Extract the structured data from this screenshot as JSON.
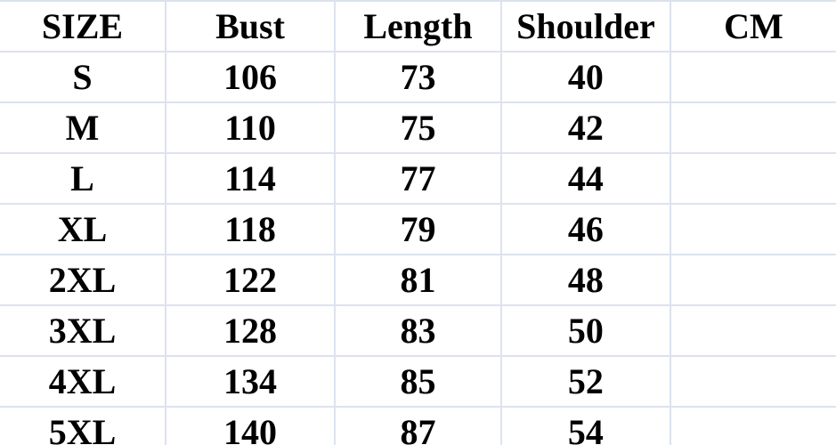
{
  "chart_data": {
    "type": "table",
    "title": "Garment size chart",
    "unit": "CM",
    "columns": [
      "SIZE",
      "Bust",
      "Length",
      "Shoulder",
      "CM"
    ],
    "rows": [
      [
        "S",
        "106",
        "73",
        "40",
        ""
      ],
      [
        "M",
        "110",
        "75",
        "42",
        ""
      ],
      [
        "L",
        "114",
        "77",
        "44",
        ""
      ],
      [
        "XL",
        "118",
        "79",
        "46",
        ""
      ],
      [
        "2XL",
        "122",
        "81",
        "48",
        ""
      ],
      [
        "3XL",
        "128",
        "83",
        "50",
        ""
      ],
      [
        "4XL",
        "134",
        "85",
        "52",
        ""
      ],
      [
        "5XL",
        "140",
        "87",
        "54",
        ""
      ]
    ]
  },
  "colors": {
    "grid_line": "#dde2ee",
    "text": "#000000",
    "background": "#ffffff"
  }
}
